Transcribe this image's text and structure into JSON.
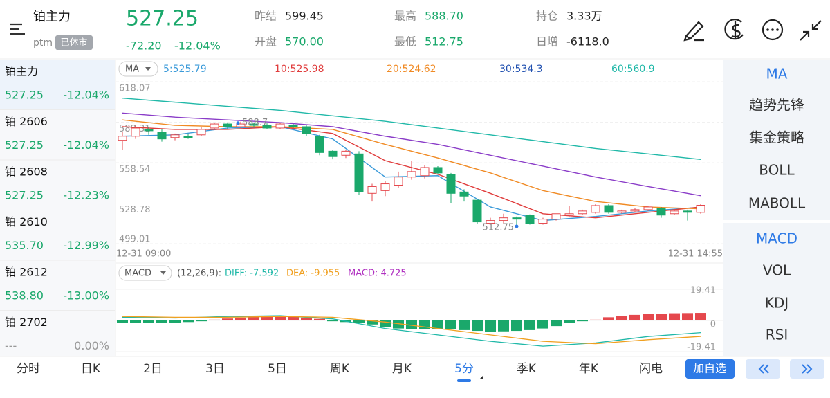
{
  "header": {
    "name": "铂主力",
    "code": "ptm",
    "status": "已休市",
    "price": "527.25",
    "change": "-72.20",
    "change_pct": "-12.04%",
    "stats": [
      {
        "label": "昨结",
        "value": "599.45",
        "color": "#222222"
      },
      {
        "label": "开盘",
        "value": "570.00",
        "color": "#1aa86b"
      },
      {
        "label": "最高",
        "value": "588.70",
        "color": "#1aa86b"
      },
      {
        "label": "最低",
        "value": "512.75",
        "color": "#1aa86b"
      },
      {
        "label": "持仓",
        "value": "3.33万",
        "color": "#222222"
      },
      {
        "label": "日增",
        "value": "-6118.0",
        "color": "#222222"
      }
    ]
  },
  "sidebar": [
    {
      "name": "铂主力",
      "price": "527.25",
      "pct": "-12.04%"
    },
    {
      "name": "铂 2606",
      "price": "527.25",
      "pct": "-12.04%"
    },
    {
      "name": "铂 2608",
      "price": "527.25",
      "pct": "-12.23%"
    },
    {
      "name": "铂 2610",
      "price": "535.70",
      "pct": "-12.99%"
    },
    {
      "name": "铂 2612",
      "price": "538.80",
      "pct": "-13.00%"
    },
    {
      "name": "铂 2702",
      "price": "---",
      "pct": "0.00%"
    }
  ],
  "kline": {
    "indicator": "MA",
    "ylim": [
      499.01,
      618.07
    ],
    "yticks": [
      618.07,
      588.31,
      558.54,
      528.78,
      499.01
    ],
    "time_start": "12-31 09:00",
    "time_end": "12-31 14:55",
    "up_color": "#e5484d",
    "down_color": "#1aa86b",
    "high_label": "588.7",
    "low_label": "512.75",
    "candles": [
      {
        "o": 575,
        "h": 581,
        "l": 568,
        "c": 578
      },
      {
        "o": 578,
        "h": 586,
        "l": 576,
        "c": 584
      },
      {
        "o": 583,
        "h": 585,
        "l": 579,
        "c": 582
      },
      {
        "o": 581,
        "h": 583,
        "l": 574,
        "c": 576
      },
      {
        "o": 577,
        "h": 580,
        "l": 575,
        "c": 579
      },
      {
        "o": 578,
        "h": 580,
        "l": 576,
        "c": 577
      },
      {
        "o": 579,
        "h": 585,
        "l": 578,
        "c": 583
      },
      {
        "o": 584,
        "h": 588,
        "l": 583,
        "c": 587
      },
      {
        "o": 587,
        "h": 588.2,
        "l": 583,
        "c": 585
      },
      {
        "o": 585,
        "h": 588.7,
        "l": 584,
        "c": 587
      },
      {
        "o": 587,
        "h": 588,
        "l": 585,
        "c": 586
      },
      {
        "o": 586,
        "h": 587.5,
        "l": 583,
        "c": 584
      },
      {
        "o": 584,
        "h": 588,
        "l": 583,
        "c": 587
      },
      {
        "o": 586,
        "h": 587,
        "l": 584,
        "c": 585
      },
      {
        "o": 585,
        "h": 586,
        "l": 578,
        "c": 580
      },
      {
        "o": 578,
        "h": 579,
        "l": 564,
        "c": 566
      },
      {
        "o": 567,
        "h": 568,
        "l": 561,
        "c": 563
      },
      {
        "o": 564,
        "h": 568,
        "l": 562,
        "c": 567
      },
      {
        "o": 565,
        "h": 567,
        "l": 535,
        "c": 537
      },
      {
        "o": 536,
        "h": 543,
        "l": 530,
        "c": 541
      },
      {
        "o": 538,
        "h": 545,
        "l": 534,
        "c": 543
      },
      {
        "o": 542,
        "h": 552,
        "l": 540,
        "c": 548
      },
      {
        "o": 548,
        "h": 560,
        "l": 546,
        "c": 552
      },
      {
        "o": 549,
        "h": 557,
        "l": 547,
        "c": 555
      },
      {
        "o": 555,
        "h": 556,
        "l": 550,
        "c": 551
      },
      {
        "o": 550,
        "h": 551,
        "l": 529,
        "c": 536
      },
      {
        "o": 537,
        "h": 539,
        "l": 530,
        "c": 534
      },
      {
        "o": 531,
        "h": 531,
        "l": 513.5,
        "c": 515
      },
      {
        "o": 514,
        "h": 518,
        "l": 513,
        "c": 516
      },
      {
        "o": 516,
        "h": 521,
        "l": 514,
        "c": 518
      },
      {
        "o": 518,
        "h": 519,
        "l": 512.75,
        "c": 517
      },
      {
        "o": 520,
        "h": 520.5,
        "l": 513,
        "c": 514
      },
      {
        "o": 514,
        "h": 518,
        "l": 513,
        "c": 517
      },
      {
        "o": 517,
        "h": 521,
        "l": 516,
        "c": 521
      },
      {
        "o": 520,
        "h": 527,
        "l": 519,
        "c": 521
      },
      {
        "o": 521,
        "h": 524,
        "l": 520,
        "c": 523
      },
      {
        "o": 522,
        "h": 528,
        "l": 521,
        "c": 527
      },
      {
        "o": 527,
        "h": 528,
        "l": 521,
        "c": 522
      },
      {
        "o": 522,
        "h": 524,
        "l": 521,
        "c": 523
      },
      {
        "o": 523,
        "h": 525,
        "l": 522,
        "c": 524
      },
      {
        "o": 524,
        "h": 527,
        "l": 523,
        "c": 526
      },
      {
        "o": 525,
        "h": 526,
        "l": 518,
        "c": 520
      },
      {
        "o": 521,
        "h": 524,
        "l": 520,
        "c": 523
      },
      {
        "o": 523,
        "h": 524,
        "l": 516,
        "c": 522
      },
      {
        "o": 522,
        "h": 528,
        "l": 521,
        "c": 527.25
      }
    ],
    "ma_x": [
      0,
      4,
      8,
      12,
      16,
      20,
      24,
      28,
      32,
      36,
      40,
      44
    ],
    "ma": [
      {
        "label": "5:525.79",
        "color": "#3a9ad9",
        "label_color": "#3a9ad9",
        "values": [
          578,
          579,
          584,
          585,
          576,
          548,
          549,
          526,
          516,
          519,
          523,
          525.79
        ]
      },
      {
        "label": "10:525.98",
        "color": "#e03c3c",
        "label_color": "#e03c3c",
        "values": [
          585,
          583,
          583,
          585,
          580,
          560,
          550,
          536,
          521,
          518,
          522,
          525.98
        ]
      },
      {
        "label": "20:524.62",
        "color": "#f08a24",
        "label_color": "#f08a24",
        "values": [
          590,
          586,
          585,
          585,
          583,
          572,
          562,
          551,
          538,
          530,
          526,
          524.62
        ]
      },
      {
        "label": "30:534.3",
        "color": "#8a3cc8",
        "label_color": "#2050b0",
        "values": [
          595,
          592,
          590,
          588,
          585,
          578,
          572,
          564,
          556,
          548,
          541,
          534.3
        ]
      },
      {
        "label": "60:560.9",
        "color": "#20b8a8",
        "label_color": "#20b8a8",
        "values": [
          606,
          603,
          600,
          597,
          593,
          589,
          584,
          579,
          574,
          569,
          565,
          560.9
        ]
      }
    ]
  },
  "macd": {
    "indicator": "MACD",
    "params": "(12,26,9):",
    "ylim": [
      -19.41,
      19.41
    ],
    "yticks": [
      19.41,
      0,
      -19.41
    ],
    "legend": [
      {
        "label": "DIFF: -7.592",
        "color": "#20b8a8"
      },
      {
        "label": "DEA: -9.955",
        "color": "#f0a020"
      },
      {
        "label": "MACD: 4.725",
        "color": "#b030c0"
      }
    ],
    "bars": [
      -1.5,
      -1.6,
      -1.5,
      -1.4,
      -1.3,
      -1.0,
      -0.5,
      0.5,
      1.2,
      1.8,
      2.5,
      2.8,
      2.7,
      2.4,
      1.8,
      1.0,
      -0.5,
      -1.0,
      -1.3,
      -2.5,
      -4.0,
      -5.0,
      -5.5,
      -5.3,
      -5.2,
      -5.5,
      -6.0,
      -6.5,
      -7.0,
      -6.8,
      -6.5,
      -6.0,
      -5.0,
      -3.5,
      -1.5,
      -0.5,
      0.5,
      2.0,
      3.0,
      3.5,
      4.0,
      4.3,
      4.5,
      4.6,
      4.725
    ],
    "x": [
      0,
      4,
      8,
      12,
      16,
      20,
      24,
      28,
      32,
      36,
      40,
      44
    ],
    "diff": [
      2,
      1.5,
      2.5,
      3,
      1,
      -5,
      -9,
      -13,
      -16,
      -14,
      -10,
      -7.592
    ],
    "dea": [
      2.5,
      2,
      2,
      2.5,
      2,
      -1,
      -5,
      -9,
      -13,
      -14.5,
      -12,
      -9.955
    ]
  },
  "indicators": [
    "MA",
    "趋势先锋",
    "集金策略",
    "BOLL",
    "MABOLL",
    "MACD",
    "VOL",
    "KDJ",
    "RSI"
  ],
  "tabs": [
    "分时",
    "日K",
    "2日",
    "3日",
    "5日",
    "周K",
    "月K",
    "5分",
    "季K",
    "年K",
    "闪电"
  ],
  "active_tab": "5分",
  "add_button": "加自选"
}
